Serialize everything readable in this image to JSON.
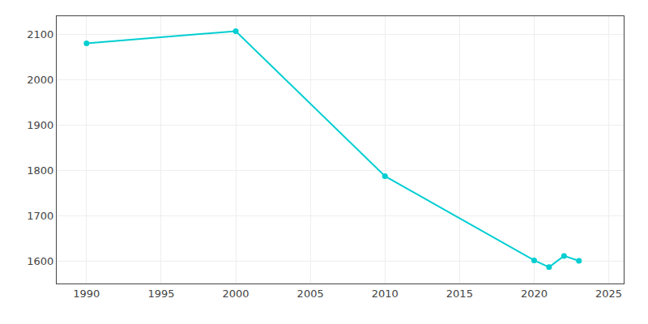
{
  "chart_data": {
    "type": "line",
    "x": [
      1990,
      2000,
      2010,
      2020,
      2021,
      2022,
      2023
    ],
    "values": [
      2080,
      2107,
      1787,
      1601,
      1586,
      1611,
      1600
    ],
    "color": "#00CED1",
    "marker": "circle",
    "xlim": [
      1988,
      2026
    ],
    "ylim": [
      1550,
      2140
    ],
    "xticks": [
      1990,
      1995,
      2000,
      2005,
      2010,
      2015,
      2020,
      2025
    ],
    "yticks": [
      1600,
      1700,
      1800,
      1900,
      2000,
      2100
    ],
    "grid": true
  }
}
